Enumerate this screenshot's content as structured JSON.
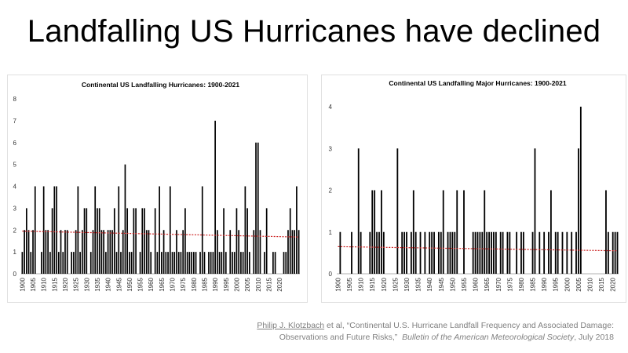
{
  "slide": {
    "title": "Landfalling US Hurricanes have declined"
  },
  "citation": {
    "author": "Philip J. Klotzbach",
    "line1_rest": " et al, “Continental U.S. Hurricane Landfall Frequency and Associated Damage:",
    "line2_text": "Observations and Future Risks,”",
    "journal": "Bulletin of the American Meteorological Society",
    "date": ", July 2018"
  },
  "chart_data": [
    {
      "type": "bar",
      "title": "Continental US Landfalling Hurricanes: 1900-2021",
      "xlabel": "",
      "ylabel": "",
      "x_start": 1900,
      "x_end": 2021,
      "xtick_labels": [
        "1900",
        "1905",
        "1910",
        "1915",
        "1920",
        "1925",
        "1930",
        "1935",
        "1940",
        "1945",
        "1950",
        "1955",
        "1960",
        "1965",
        "1970",
        "1975",
        "1980",
        "1985",
        "1990",
        "1995",
        "2000",
        "2005",
        "2010",
        "2015",
        "2020"
      ],
      "ylim": [
        0,
        8
      ],
      "yticks": [
        0,
        1,
        2,
        3,
        4,
        5,
        6,
        7,
        8
      ],
      "grid": false,
      "bar_color": "#000000",
      "values": [
        1,
        2,
        3,
        2,
        1,
        2,
        4,
        0,
        0,
        1,
        4,
        2,
        2,
        1,
        3,
        4,
        4,
        1,
        2,
        1,
        2,
        2,
        0,
        1,
        1,
        2,
        4,
        1,
        2,
        3,
        3,
        0,
        1,
        2,
        4,
        3,
        3,
        2,
        2,
        1,
        2,
        2,
        2,
        3,
        1,
        4,
        1,
        2,
        5,
        3,
        1,
        1,
        3,
        3,
        0,
        1,
        3,
        3,
        2,
        2,
        1,
        0,
        3,
        1,
        4,
        1,
        2,
        1,
        1,
        4,
        1,
        1,
        2,
        1,
        1,
        2,
        3,
        1,
        1,
        1,
        1,
        1,
        0,
        1,
        4,
        1,
        0,
        1,
        1,
        1,
        7,
        2,
        1,
        1,
        3,
        1,
        0,
        2,
        1,
        1,
        3,
        2,
        1,
        1,
        4,
        3,
        1,
        0,
        2,
        6,
        6,
        2,
        0,
        1,
        3,
        0,
        0,
        1,
        1,
        0,
        0,
        0,
        1,
        1,
        2,
        3,
        2,
        2,
        4,
        2
      ],
      "trend": {
        "label": "",
        "color": "#cc2222",
        "start": 1.95,
        "end": 1.68
      }
    },
    {
      "type": "bar",
      "title": "Continental US Landfalling Major Hurricanes: 1900-2021",
      "xlabel": "",
      "ylabel": "",
      "x_start": 1900,
      "x_end": 2021,
      "xtick_labels": [
        "1900",
        "1905",
        "1910",
        "1915",
        "1920",
        "1925",
        "1930",
        "1935",
        "1940",
        "1945",
        "1950",
        "1955",
        "1960",
        "1965",
        "1970",
        "1975",
        "1980",
        "1985",
        "1990",
        "1995",
        "2000",
        "2005",
        "2010",
        "2015",
        "2020"
      ],
      "ylim": [
        0,
        4
      ],
      "yticks": [
        0,
        1,
        2,
        3,
        4
      ],
      "grid": false,
      "bar_color": "#000000",
      "values": [
        0,
        1,
        0,
        0,
        0,
        0,
        1,
        0,
        0,
        3,
        1,
        0,
        0,
        0,
        1,
        2,
        2,
        1,
        1,
        2,
        1,
        0,
        0,
        0,
        0,
        0,
        3,
        0,
        1,
        1,
        1,
        0,
        1,
        2,
        1,
        0,
        1,
        0,
        1,
        0,
        1,
        1,
        1,
        0,
        1,
        1,
        2,
        0,
        1,
        1,
        1,
        1,
        2,
        0,
        0,
        2,
        0,
        0,
        0,
        1,
        1,
        1,
        1,
        1,
        2,
        1,
        1,
        1,
        1,
        1,
        0,
        1,
        1,
        0,
        1,
        1,
        0,
        0,
        1,
        0,
        1,
        1,
        0,
        0,
        0,
        1,
        3,
        0,
        1,
        0,
        1,
        0,
        1,
        2,
        0,
        1,
        1,
        0,
        1,
        0,
        1,
        0,
        1,
        0,
        1,
        3,
        4,
        0,
        0,
        0,
        0,
        0,
        0,
        0,
        0,
        0,
        0,
        2,
        1,
        0,
        1,
        1,
        1
      ],
      "trend": {
        "label": "",
        "color": "#cc2222",
        "start": 0.65,
        "end": 0.55
      }
    }
  ]
}
